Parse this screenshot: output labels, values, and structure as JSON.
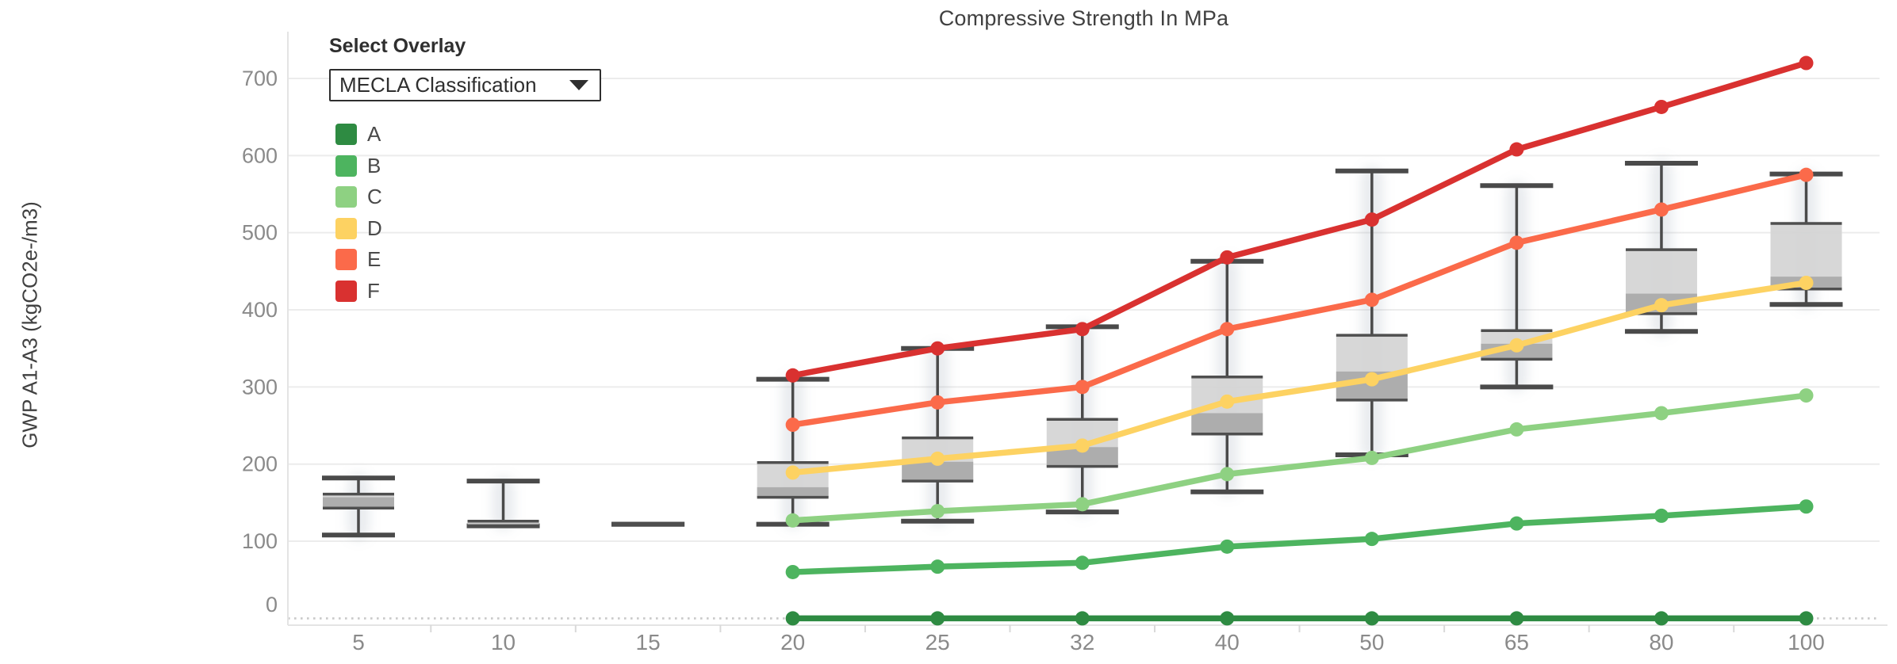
{
  "title": "Compressive Strength In MPa",
  "y_axis": {
    "label": "GWP A1-A3 (kgCO2e-/m3)"
  },
  "overlay": {
    "label": "Select Overlay",
    "selected": "MECLA Classification",
    "caret_icon": "chevron-down"
  },
  "legend": {
    "items": [
      {
        "label": "A",
        "color": "#2e8b42"
      },
      {
        "label": "B",
        "color": "#4db45f"
      },
      {
        "label": "C",
        "color": "#8ed182"
      },
      {
        "label": "D",
        "color": "#fdd262"
      },
      {
        "label": "E",
        "color": "#fb6a4a"
      },
      {
        "label": "F",
        "color": "#d93130"
      }
    ]
  },
  "chart_data": {
    "type": "box+line",
    "title": "Compressive Strength In MPa",
    "xlabel": "",
    "ylabel": "GWP A1-A3 (kgCO2e-/m3)",
    "x_categories": [
      "5",
      "10",
      "15",
      "20",
      "25",
      "32",
      "40",
      "50",
      "65",
      "80",
      "100"
    ],
    "y_ticks": [
      "0",
      "100",
      "200",
      "300",
      "400",
      "500",
      "600",
      "700"
    ],
    "ylim": [
      -25,
      755
    ],
    "grid": "horizontal",
    "zeroline": "dotted",
    "legend_position": "top-left",
    "boxes": [
      {
        "x": "5",
        "low": 108,
        "q1": 143,
        "median": 157,
        "q3": 161,
        "high": 182
      },
      {
        "x": "10",
        "low": 120,
        "q1": 120,
        "median": 123,
        "q3": 126,
        "high": 178
      },
      {
        "x": "15",
        "low": 122,
        "q1": 122,
        "median": 122,
        "q3": 122,
        "high": 122
      },
      {
        "x": "20",
        "low": 122,
        "q1": 157,
        "median": 170,
        "q3": 202,
        "high": 310
      },
      {
        "x": "25",
        "low": 126,
        "q1": 178,
        "median": 203,
        "q3": 234,
        "high": 350
      },
      {
        "x": "32",
        "low": 138,
        "q1": 197,
        "median": 222,
        "q3": 258,
        "high": 378
      },
      {
        "x": "40",
        "low": 164,
        "q1": 239,
        "median": 266,
        "q3": 313,
        "high": 463
      },
      {
        "x": "50",
        "low": 212,
        "q1": 283,
        "median": 320,
        "q3": 367,
        "high": 580
      },
      {
        "x": "65",
        "low": 300,
        "q1": 336,
        "median": 356,
        "q3": 373,
        "high": 561
      },
      {
        "x": "80",
        "low": 372,
        "q1": 395,
        "median": 421,
        "q3": 478,
        "high": 590
      },
      {
        "x": "100",
        "low": 407,
        "q1": 427,
        "median": 443,
        "q3": 512,
        "high": 576
      }
    ],
    "series": [
      {
        "name": "A",
        "color": "#2e8b42",
        "x": [
          "20",
          "25",
          "32",
          "40",
          "50",
          "65",
          "80",
          "100"
        ],
        "values": [
          0,
          0,
          0,
          0,
          0,
          0,
          0,
          0
        ]
      },
      {
        "name": "B",
        "color": "#4db45f",
        "x": [
          "20",
          "25",
          "32",
          "40",
          "50",
          "65",
          "80",
          "100"
        ],
        "values": [
          60,
          67,
          72,
          93,
          103,
          123,
          133,
          145
        ]
      },
      {
        "name": "C",
        "color": "#8ed182",
        "x": [
          "20",
          "25",
          "32",
          "40",
          "50",
          "65",
          "80",
          "100"
        ],
        "values": [
          127,
          139,
          148,
          187,
          208,
          245,
          266,
          289
        ]
      },
      {
        "name": "D",
        "color": "#fdd262",
        "x": [
          "20",
          "25",
          "32",
          "40",
          "50",
          "65",
          "80",
          "100"
        ],
        "values": [
          189,
          207,
          224,
          281,
          310,
          354,
          406,
          435
        ]
      },
      {
        "name": "E",
        "color": "#fb6a4a",
        "x": [
          "20",
          "25",
          "32",
          "40",
          "50",
          "65",
          "80",
          "100"
        ],
        "values": [
          251,
          280,
          300,
          375,
          413,
          487,
          530,
          575
        ]
      },
      {
        "name": "F",
        "color": "#d93130",
        "x": [
          "20",
          "25",
          "32",
          "40",
          "50",
          "65",
          "80",
          "100"
        ],
        "values": [
          315,
          350,
          375,
          468,
          517,
          608,
          663,
          720
        ]
      }
    ],
    "style_colors": {
      "gridline": "#ececec",
      "zeroline": "#c9c9c9",
      "axis_line": "#e4e4e4",
      "boundary_tick": "#d9d9d9",
      "tick_text": "#8a8a8a",
      "box_fill": "#d4d4d4",
      "box_band": "#ababab",
      "box_edge": "#4f4f4f",
      "whisker": "#4a4a4a",
      "scatter_smudge": "rgba(145,155,170,0.20)"
    }
  }
}
